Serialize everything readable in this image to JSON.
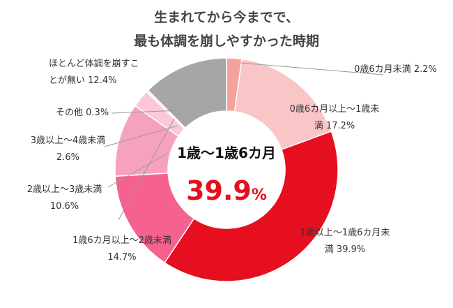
{
  "chart_data": {
    "type": "donut",
    "title": [
      "生まれてから今までで、",
      "最も体調を崩しやすかった時期"
    ],
    "categories": [
      "0歳6カ月未満",
      "0歳6カ月以上～1歳未満",
      "1歳以上～1歳6カ月未満",
      "1歳6カ月以上～2歳未満",
      "2歳以上～3歳未満",
      "3歳以上～4歳未満",
      "その他",
      "ほとんど体調を崩すことが無い"
    ],
    "values": [
      2.2,
      17.2,
      39.9,
      14.7,
      10.6,
      2.6,
      0.3,
      12.4
    ],
    "value_labels": [
      "2.2%",
      "17.2%",
      "39.9%",
      "14.7%",
      "10.6%",
      "2.6%",
      "0.3%",
      "12.4%"
    ],
    "colors": [
      "#f5a29c",
      "#f9c5c6",
      "#e50f1f",
      "#f5628f",
      "#f7a1c1",
      "#fbc8da",
      "#fde6ee",
      "#a6a6a6"
    ],
    "center": {
      "label": "1歳～1歳6カ月",
      "value": 39.9,
      "unit": "%"
    }
  }
}
